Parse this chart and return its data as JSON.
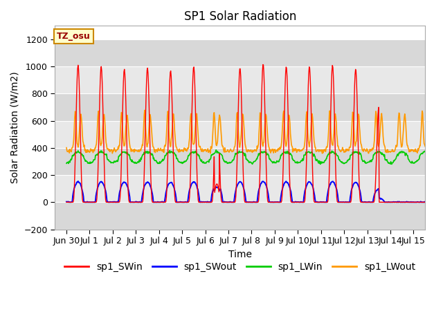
{
  "title": "SP1 Solar Radiation",
  "xlabel": "Time",
  "ylabel": "Solar Radiation (W/m2)",
  "ylim": [
    -200,
    1300
  ],
  "yticks": [
    -200,
    0,
    200,
    400,
    600,
    800,
    1000,
    1200
  ],
  "xlim": [
    -0.5,
    15.5
  ],
  "xtick_labels": [
    "Jun 30",
    "Jul 1",
    "Jul 2",
    "Jul 3",
    "Jul 4",
    "Jul 5",
    "Jul 6",
    "Jul 7",
    "Jul 8",
    "Jul 9",
    "Jul 10",
    "Jul 11",
    "Jul 12",
    "Jul 13",
    "Jul 14",
    "Jul 15"
  ],
  "xtick_positions": [
    0,
    1,
    2,
    3,
    4,
    5,
    6,
    7,
    8,
    9,
    10,
    11,
    12,
    13,
    14,
    15
  ],
  "colors": {
    "sp1_SWin": "#ff0000",
    "sp1_SWout": "#0000ff",
    "sp1_LWin": "#00cc00",
    "sp1_LWout": "#ff9900"
  },
  "tz_label": "TZ_osu",
  "tz_box_facecolor": "#ffffcc",
  "tz_box_edgecolor": "#cc8800",
  "plot_bg_light": "#e8e8e8",
  "plot_bg_dark": "#d0d0d0",
  "grid_color": "#ffffff",
  "fig_facecolor": "#ffffff",
  "title_fontsize": 12,
  "axis_label_fontsize": 10,
  "tick_fontsize": 9,
  "legend_fontsize": 10
}
